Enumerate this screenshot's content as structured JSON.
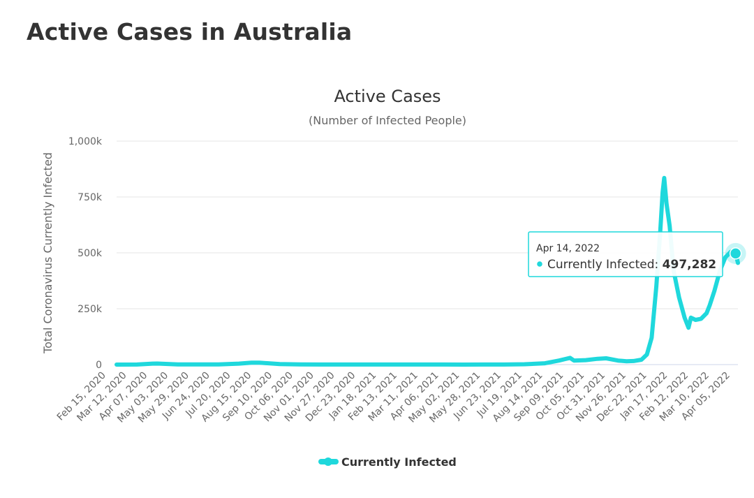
{
  "page": {
    "title": "Active Cases in Australia"
  },
  "chart_data": {
    "type": "line",
    "title": "Active Cases",
    "subtitle": "(Number of Infected People)",
    "ylabel": "Total Coronavirus Currently Infected",
    "xlabel": "",
    "ylim": [
      0,
      1000000
    ],
    "y_ticks": [
      {
        "value": 0,
        "label": "0"
      },
      {
        "value": 250000,
        "label": "250k"
      },
      {
        "value": 500000,
        "label": "500k"
      },
      {
        "value": 750000,
        "label": "750k"
      },
      {
        "value": 1000000,
        "label": "1,000k"
      }
    ],
    "x_tick_labels": [
      "Feb 15, 2020",
      "Mar 12, 2020",
      "Apr 07, 2020",
      "May 03, 2020",
      "May 29, 2020",
      "Jun 24, 2020",
      "Jul 20, 2020",
      "Aug 15, 2020",
      "Sep 10, 2020",
      "Oct 06, 2020",
      "Nov 01, 2020",
      "Nov 27, 2020",
      "Dec 23, 2020",
      "Jan 18, 2021",
      "Feb 13, 2021",
      "Mar 11, 2021",
      "Apr 06, 2021",
      "May 02, 2021",
      "May 28, 2021",
      "Jun 23, 2021",
      "Jul 19, 2021",
      "Aug 14, 2021",
      "Sep 09, 2021",
      "Oct 05, 2021",
      "Oct 31, 2021",
      "Nov 26, 2021",
      "Dec 22, 2021",
      "Jan 17, 2022",
      "Feb 12, 2022",
      "Mar 10, 2022",
      "Apr 05, 2022"
    ],
    "grid": true,
    "legend": {
      "position": "bottom"
    },
    "series": [
      {
        "name": "Currently Infected",
        "color": "#1fd8dc",
        "points": [
          [
            "2020-02-15",
            10
          ],
          [
            "2020-03-12",
            250
          ],
          [
            "2020-04-01",
            4500
          ],
          [
            "2020-04-07",
            4800
          ],
          [
            "2020-05-03",
            900
          ],
          [
            "2020-05-29",
            500
          ],
          [
            "2020-06-24",
            800
          ],
          [
            "2020-07-20",
            4500
          ],
          [
            "2020-08-05",
            8800
          ],
          [
            "2020-08-15",
            8500
          ],
          [
            "2020-09-10",
            2500
          ],
          [
            "2020-10-06",
            700
          ],
          [
            "2020-11-01",
            400
          ],
          [
            "2020-11-27",
            300
          ],
          [
            "2020-12-23",
            400
          ],
          [
            "2021-01-18",
            300
          ],
          [
            "2021-02-13",
            250
          ],
          [
            "2021-03-11",
            200
          ],
          [
            "2021-04-06",
            200
          ],
          [
            "2021-05-02",
            150
          ],
          [
            "2021-05-28",
            200
          ],
          [
            "2021-06-23",
            300
          ],
          [
            "2021-07-19",
            1500
          ],
          [
            "2021-08-14",
            6000
          ],
          [
            "2021-09-01",
            18000
          ],
          [
            "2021-09-09",
            25000
          ],
          [
            "2021-09-15",
            30000
          ],
          [
            "2021-09-20",
            18000
          ],
          [
            "2021-10-05",
            20000
          ],
          [
            "2021-10-20",
            26000
          ],
          [
            "2021-10-31",
            28000
          ],
          [
            "2021-11-15",
            18000
          ],
          [
            "2021-11-26",
            15000
          ],
          [
            "2021-12-05",
            16000
          ],
          [
            "2021-12-15",
            22000
          ],
          [
            "2021-12-22",
            45000
          ],
          [
            "2021-12-28",
            120000
          ],
          [
            "2022-01-03",
            350000
          ],
          [
            "2022-01-08",
            600000
          ],
          [
            "2022-01-11",
            770000
          ],
          [
            "2022-01-13",
            835000
          ],
          [
            "2022-01-16",
            720000
          ],
          [
            "2022-01-20",
            620000
          ],
          [
            "2022-01-25",
            420000
          ],
          [
            "2022-02-01",
            300000
          ],
          [
            "2022-02-08",
            210000
          ],
          [
            "2022-02-13",
            165000
          ],
          [
            "2022-02-16",
            210000
          ],
          [
            "2022-02-22",
            200000
          ],
          [
            "2022-03-01",
            205000
          ],
          [
            "2022-03-08",
            230000
          ],
          [
            "2022-03-12",
            265000
          ],
          [
            "2022-03-18",
            330000
          ],
          [
            "2022-03-25",
            420000
          ],
          [
            "2022-04-01",
            480000
          ],
          [
            "2022-04-08",
            505000
          ],
          [
            "2022-04-14",
            497282
          ],
          [
            "2022-04-17",
            455000
          ]
        ]
      }
    ],
    "tooltip": {
      "date": "Apr 14, 2022",
      "series": "Currently Infected",
      "value": "497,282",
      "x": "2022-04-14",
      "y": 497282
    }
  }
}
